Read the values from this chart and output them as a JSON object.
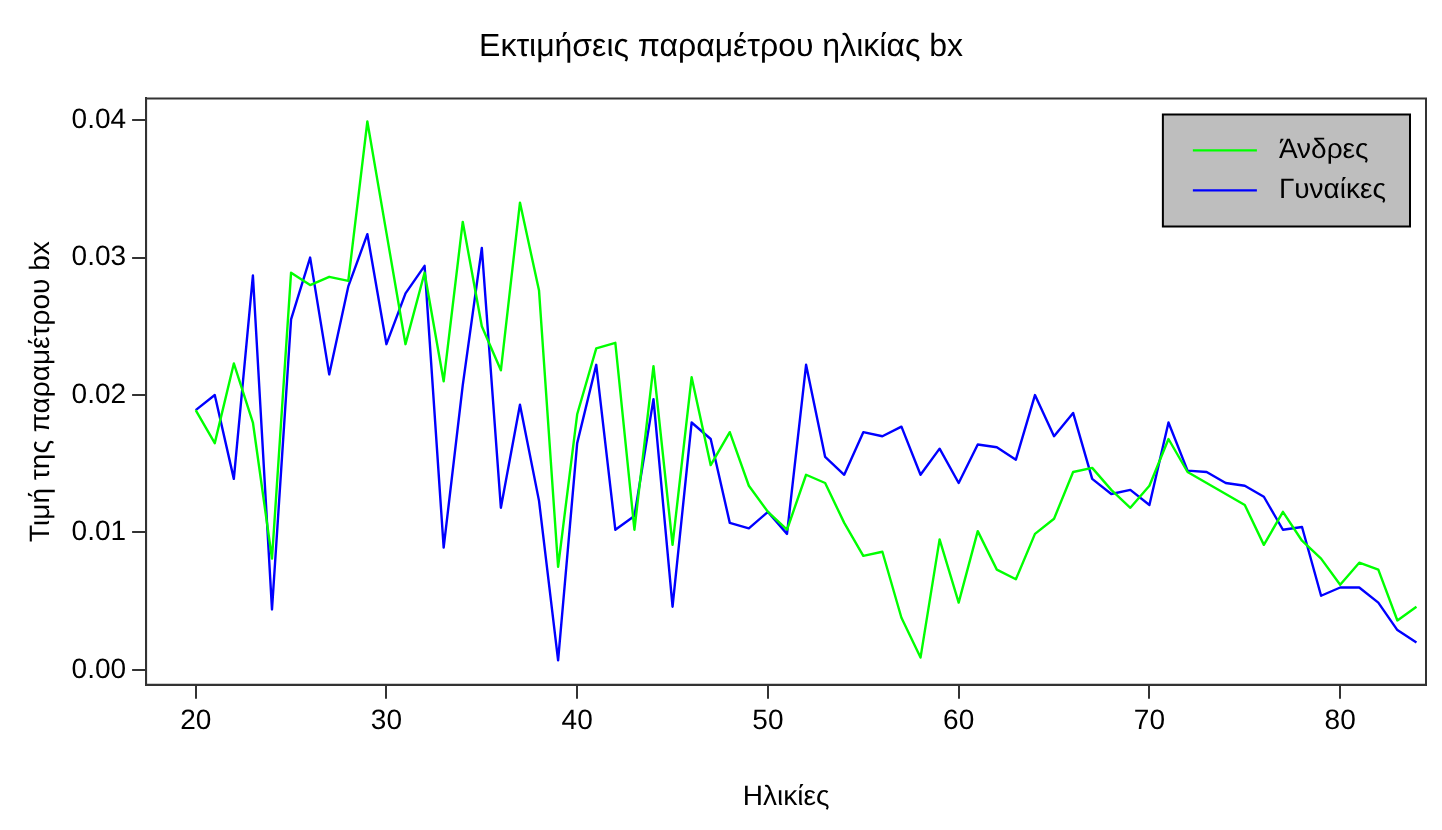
{
  "chart_data": {
    "type": "line",
    "title": "Εκτιμήσεις παραμέτρου ηλικίας bx",
    "xlabel": "Ηλικίες",
    "ylabel": "Τιμή της παραμέτρου bx",
    "x": [
      20,
      21,
      22,
      23,
      24,
      25,
      26,
      27,
      28,
      29,
      30,
      31,
      32,
      33,
      34,
      35,
      36,
      37,
      38,
      39,
      40,
      41,
      42,
      43,
      44,
      45,
      46,
      47,
      48,
      49,
      50,
      51,
      52,
      53,
      54,
      55,
      56,
      57,
      58,
      59,
      60,
      61,
      62,
      63,
      64,
      65,
      66,
      67,
      68,
      69,
      70,
      71,
      72,
      73,
      74,
      75,
      76,
      77,
      78,
      79,
      80,
      81,
      82,
      83,
      84
    ],
    "series": [
      {
        "name": "Άνδρες",
        "color": "#00ff00",
        "values": [
          0.0189,
          0.0165,
          0.0223,
          0.018,
          0.0081,
          0.0289,
          0.028,
          0.0286,
          0.0283,
          0.0399,
          0.0318,
          0.0237,
          0.0289,
          0.021,
          0.0326,
          0.025,
          0.0218,
          0.034,
          0.0276,
          0.0075,
          0.0186,
          0.0234,
          0.0238,
          0.0102,
          0.0221,
          0.0091,
          0.0213,
          0.0149,
          0.0173,
          0.0134,
          0.0115,
          0.0102,
          0.0142,
          0.0136,
          0.0107,
          0.0083,
          0.0086,
          0.0038,
          0.0009,
          0.0095,
          0.0049,
          0.0101,
          0.0073,
          0.0066,
          0.0099,
          0.011,
          0.0144,
          0.0147,
          0.0131,
          0.0118,
          0.0134,
          0.0168,
          0.0144,
          0.0136,
          0.0128,
          0.012,
          0.0091,
          0.0115,
          0.0094,
          0.0081,
          0.0062,
          0.0078,
          0.0073,
          0.0036,
          0.0046
        ]
      },
      {
        "name": "Γυναίκες",
        "color": "#0000ff",
        "values": [
          0.0189,
          0.02,
          0.0139,
          0.0287,
          0.0044,
          0.0255,
          0.03,
          0.0215,
          0.0279,
          0.0317,
          0.0237,
          0.0274,
          0.0294,
          0.0089,
          0.0207,
          0.0307,
          0.0118,
          0.0193,
          0.0123,
          0.0007,
          0.0165,
          0.0222,
          0.0102,
          0.0112,
          0.0197,
          0.0046,
          0.018,
          0.0168,
          0.0107,
          0.0103,
          0.0115,
          0.0099,
          0.0222,
          0.0155,
          0.0142,
          0.0173,
          0.017,
          0.0177,
          0.0142,
          0.0161,
          0.0136,
          0.0164,
          0.0162,
          0.0153,
          0.02,
          0.017,
          0.0187,
          0.0139,
          0.0128,
          0.0131,
          0.012,
          0.018,
          0.0145,
          0.0144,
          0.0136,
          0.0134,
          0.0126,
          0.0102,
          0.0104,
          0.0054,
          0.006,
          0.006,
          0.0049,
          0.0029,
          0.002
        ]
      }
    ],
    "xlim": [
      17.4,
      84.5
    ],
    "xticks": [
      20,
      30,
      40,
      50,
      60,
      70,
      80
    ],
    "ylim": [
      -0.00108,
      0.04158
    ],
    "yticks": [
      {
        "value": 0,
        "label": "0.00"
      },
      {
        "value": 0.01,
        "label": "0.01"
      },
      {
        "value": 0.02,
        "label": "0.02"
      },
      {
        "value": 0.03,
        "label": "0.03"
      },
      {
        "value": 0.04,
        "label": "0.04"
      }
    ],
    "legend": "top right",
    "grid": false,
    "marker": "none",
    "line_style": "solid"
  }
}
